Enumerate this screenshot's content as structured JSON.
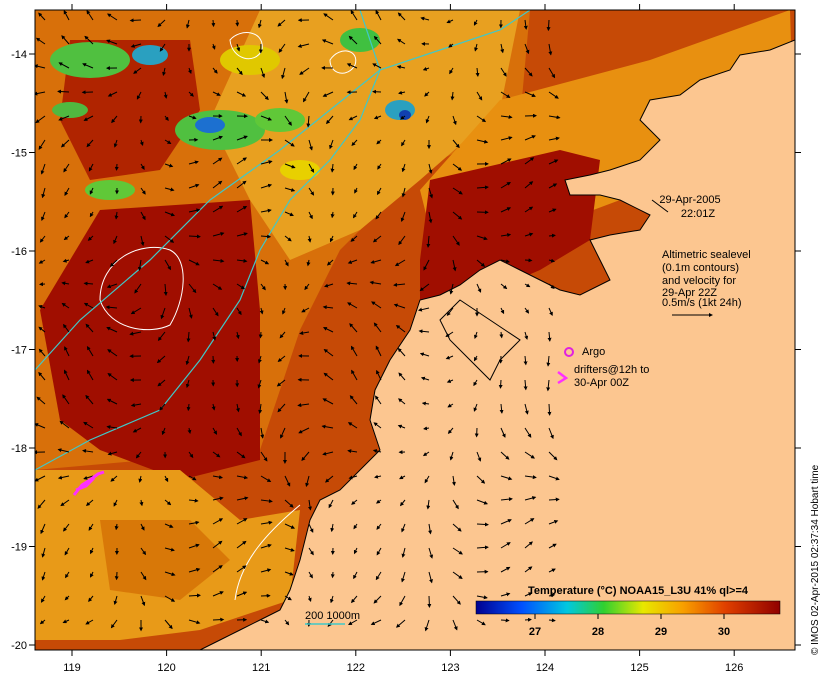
{
  "map": {
    "date": "29-Apr-2005",
    "time": "22:01Z",
    "legend": {
      "title": "Temperature (°C) NOAA15_L3U 41% ql>=4",
      "ticks": [
        "27",
        "28",
        "29",
        "30"
      ]
    },
    "sealevel_note": [
      "Altimetric sealevel",
      "(0.1m contours)",
      "and velocity for",
      "29-Apr 22Z",
      "0.5m/s (1kt 24h)"
    ],
    "argo_label": "Argo",
    "drifters_label": [
      "drifters@12h to",
      "30-Apr 00Z"
    ],
    "isobath_label": "200  1000m",
    "credit": "© IMOS 02-Apr-2015 02:37:34 Hobart time",
    "x_ticks": [
      "119",
      "120",
      "121",
      "122",
      "123",
      "124",
      "125",
      "126"
    ],
    "y_ticks": [
      "-14",
      "-15",
      "-16",
      "-17",
      "-18",
      "-19",
      "-20"
    ],
    "colors": {
      "land": "#fcc690",
      "warm": "#9c0b00",
      "mid": "#d85a00",
      "cool": "#f0b000",
      "cold": "#2ec040",
      "coldest": "#1060c0",
      "isobath": "#40c8c8",
      "contour": "#ffffff",
      "drifter": "#ff30ff"
    }
  }
}
